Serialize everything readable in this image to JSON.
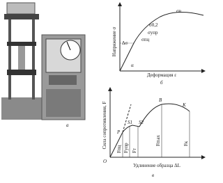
{
  "panels": [
    {
      "label": "а"
    },
    {
      "label": "б",
      "y_axis": "Напряжение σ",
      "x_axis": "Деформация ε",
      "annotations": [
        "σв",
        "σ0,2",
        "σупр",
        "σпц",
        "Δσ",
        "α"
      ]
    },
    {
      "label": "в",
      "y_axis": "Сила сопротивления, F",
      "x_axis": "Удлинение образца ΔL",
      "annotations": [
        "B",
        "K",
        "S1",
        "S2",
        "P",
        "O",
        "Fпц",
        "Fупр",
        "Fт",
        "Fmax",
        "Fк"
      ]
    }
  ]
}
